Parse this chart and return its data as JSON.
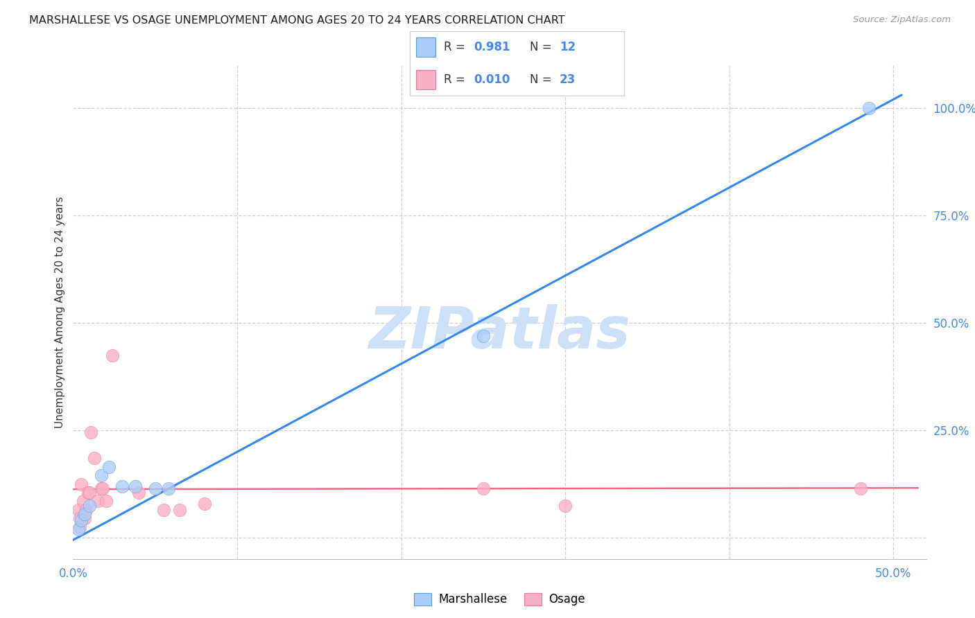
{
  "title": "MARSHALLESE VS OSAGE UNEMPLOYMENT AMONG AGES 20 TO 24 YEARS CORRELATION CHART",
  "source": "Source: ZipAtlas.com",
  "ylabel": "Unemployment Among Ages 20 to 24 years",
  "xlim": [
    0.0,
    0.52
  ],
  "ylim": [
    -0.05,
    1.1
  ],
  "xtick_positions": [
    0.0,
    0.1,
    0.2,
    0.3,
    0.4,
    0.5
  ],
  "xtick_labels": [
    "0.0%",
    "",
    "",
    "",
    "",
    "50.0%"
  ],
  "ytick_positions": [
    0.0,
    0.25,
    0.5,
    0.75,
    1.0
  ],
  "ytick_labels": [
    "",
    "25.0%",
    "50.0%",
    "75.0%",
    "100.0%"
  ],
  "background_color": "#ffffff",
  "grid_color": "#d0d0d0",
  "watermark": "ZIPatlas",
  "watermark_color": "#cce0f8",
  "marshallese_dot_color": "#aaccf8",
  "marshallese_dot_edge": "#5599dd",
  "osage_dot_color": "#f8b0c4",
  "osage_dot_edge": "#ee7799",
  "marshallese_line_color": "#3388ee",
  "osage_line_color": "#ee6688",
  "tick_color": "#4488ee",
  "marshallese_R": "0.981",
  "marshallese_N": "12",
  "osage_R": "0.010",
  "osage_N": "23",
  "marshallese_legend_label": "Marshallese",
  "osage_legend_label": "Osage",
  "marshallese_points": [
    [
      0.003,
      0.02
    ],
    [
      0.005,
      0.04
    ],
    [
      0.007,
      0.055
    ],
    [
      0.01,
      0.075
    ],
    [
      0.017,
      0.145
    ],
    [
      0.022,
      0.165
    ],
    [
      0.03,
      0.12
    ],
    [
      0.038,
      0.12
    ],
    [
      0.05,
      0.115
    ],
    [
      0.058,
      0.115
    ],
    [
      0.25,
      0.47
    ],
    [
      0.485,
      1.0
    ]
  ],
  "osage_points": [
    [
      0.003,
      0.065
    ],
    [
      0.004,
      0.045
    ],
    [
      0.004,
      0.025
    ],
    [
      0.005,
      0.125
    ],
    [
      0.006,
      0.085
    ],
    [
      0.007,
      0.045
    ],
    [
      0.008,
      0.065
    ],
    [
      0.009,
      0.105
    ],
    [
      0.01,
      0.105
    ],
    [
      0.011,
      0.245
    ],
    [
      0.013,
      0.185
    ],
    [
      0.015,
      0.085
    ],
    [
      0.017,
      0.115
    ],
    [
      0.018,
      0.115
    ],
    [
      0.02,
      0.085
    ],
    [
      0.024,
      0.425
    ],
    [
      0.04,
      0.105
    ],
    [
      0.055,
      0.065
    ],
    [
      0.065,
      0.065
    ],
    [
      0.08,
      0.08
    ],
    [
      0.25,
      0.115
    ],
    [
      0.3,
      0.075
    ],
    [
      0.48,
      0.115
    ]
  ],
  "marshallese_line_x": [
    0.0,
    0.505
  ],
  "marshallese_line_y": [
    -0.005,
    1.03
  ],
  "osage_line_x": [
    0.0,
    0.515
  ],
  "osage_line_y": [
    0.113,
    0.116
  ]
}
